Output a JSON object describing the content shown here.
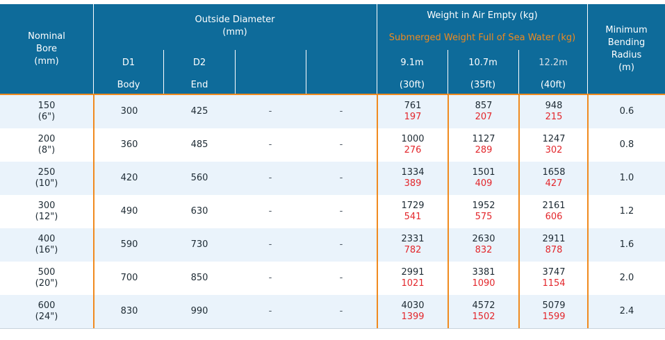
{
  "header": {
    "nominal_bore": "Nominal\nBore\n(mm)",
    "outside_diameter": "Outside Diameter\n(mm)",
    "d1": "D1",
    "d2": "D2",
    "body": "Body",
    "end": "End",
    "weight_air": "Weight in Air Empty (kg)",
    "weight_submerged": "Submerged Weight Full of Sea Water (kg)",
    "len1": "9.1m",
    "len2": "10.7m",
    "len3": "12.2m",
    "ft1": "(30ft)",
    "ft2": "(35ft)",
    "ft3": "(40ft)",
    "min_bend": "Minimum\nBending\nRadius\n(m)"
  },
  "rows": [
    {
      "bore": "150",
      "bore_in": "(6\")",
      "d1": "300",
      "d2": "425",
      "c3": "-",
      "c4": "-",
      "w1": "761",
      "s1": "197",
      "w2": "857",
      "s2": "207",
      "w3": "948",
      "s3": "215",
      "mbr": "0.6"
    },
    {
      "bore": "200",
      "bore_in": "(8\")",
      "d1": "360",
      "d2": "485",
      "c3": "-",
      "c4": "-",
      "w1": "1000",
      "s1": "276",
      "w2": "1127",
      "s2": "289",
      "w3": "1247",
      "s3": "302",
      "mbr": "0.8"
    },
    {
      "bore": "250",
      "bore_in": "(10\")",
      "d1": "420",
      "d2": "560",
      "c3": "-",
      "c4": "-",
      "w1": "1334",
      "s1": "389",
      "w2": "1501",
      "s2": "409",
      "w3": "1658",
      "s3": "427",
      "mbr": "1.0"
    },
    {
      "bore": "300",
      "bore_in": "(12\")",
      "d1": "490",
      "d2": "630",
      "c3": "-",
      "c4": "-",
      "w1": "1729",
      "s1": "541",
      "w2": "1952",
      "s2": "575",
      "w3": "2161",
      "s3": "606",
      "mbr": "1.2"
    },
    {
      "bore": "400",
      "bore_in": "(16\")",
      "d1": "590",
      "d2": "730",
      "c3": "-",
      "c4": "-",
      "w1": "2331",
      "s1": "782",
      "w2": "2630",
      "s2": "832",
      "w3": "2911",
      "s3": "878",
      "mbr": "1.6"
    },
    {
      "bore": "500",
      "bore_in": "(20\")",
      "d1": "700",
      "d2": "850",
      "c3": "-",
      "c4": "-",
      "w1": "2991",
      "s1": "1021",
      "w2": "3381",
      "s2": "1090",
      "w3": "3747",
      "s3": "1154",
      "mbr": "2.0"
    },
    {
      "bore": "600",
      "bore_in": "(24\")",
      "d1": "830",
      "d2": "990",
      "c3": "-",
      "c4": "-",
      "w1": "4030",
      "s1": "1399",
      "w2": "4572",
      "s2": "1502",
      "w3": "5079",
      "s3": "1599",
      "mbr": "2.4"
    }
  ],
  "colors": {
    "header_bg": "#0e6b9a",
    "accent": "#f08a1e",
    "sub_weight": "#e3262b",
    "alt_row": "#eaf3fb"
  }
}
